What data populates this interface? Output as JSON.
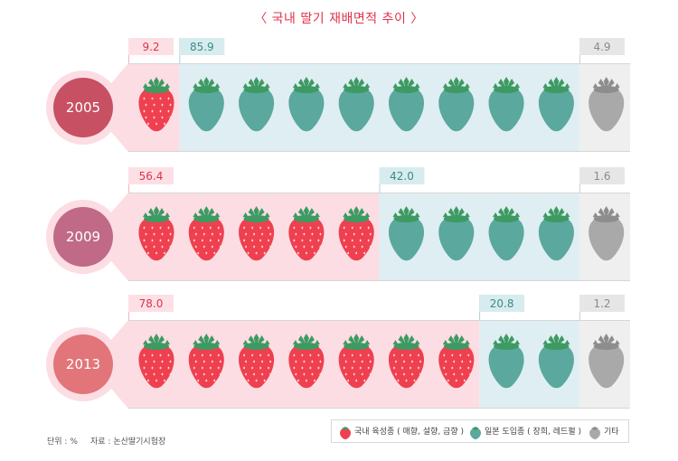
{
  "title": "〈 국내 딸기 재배면적 추이 〉",
  "footer": {
    "unit": "단위 : %",
    "source": "자료 : 논산딸기시험장"
  },
  "legend": {
    "domestic": "국내 육성종 ( 매향, 설향, 금향 )",
    "japanese": "일본 도입종 ( 장희, 레드펄 )",
    "other": "기타"
  },
  "colors": {
    "domestic": "#ef4050",
    "domestic_bg": "#fcdde3",
    "japanese": "#5aa89e",
    "japanese_bg": "#dfeef2",
    "other": "#a9a9a9",
    "other_bg": "#efefef",
    "leaf": "#3d9a62",
    "title": "#e0334a"
  },
  "chart_data": {
    "type": "bar",
    "stacked": true,
    "title": "〈 국내 딸기 재배면적 추이 〉",
    "unit": "%",
    "categories": [
      "2005",
      "2009",
      "2013"
    ],
    "series": [
      {
        "name": "국내 육성종 ( 매향, 설향, 금향 )",
        "values": [
          9.2,
          56.4,
          78.0
        ],
        "labels": [
          "9.2",
          "56.4",
          "78.0"
        ],
        "icons": [
          1,
          5,
          7
        ]
      },
      {
        "name": "일본 도입종 ( 장희, 레드펄 )",
        "values": [
          85.9,
          42.0,
          20.8
        ],
        "labels": [
          "85.9",
          "42.0",
          "20.8"
        ],
        "icons": [
          8,
          4,
          2
        ]
      },
      {
        "name": "기타",
        "values": [
          4.9,
          1.6,
          1.2
        ],
        "labels": [
          "4.9",
          "1.6",
          "1.2"
        ],
        "icons": [
          1,
          1,
          1
        ]
      }
    ],
    "circle_colors": [
      "#c75063",
      "#c06a88",
      "#e2757a"
    ]
  }
}
